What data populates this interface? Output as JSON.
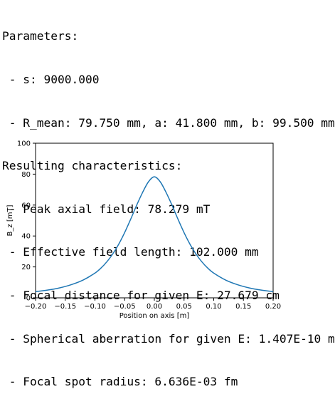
{
  "output": {
    "lines": [
      "Parameters:",
      " - s: 9000.000",
      " - R_mean: 79.750 mm, a: 41.800 mm, b: 99.500 mm",
      "Resulting characteristics:",
      " - Peak axial field: 78.279 mT",
      " - Effective field length: 102.000 mm",
      " - Focal distance for given E: 27.679 cm",
      " - Spherical aberration for given E: 1.407E-10 m",
      " - Focal spot radius: 6.636E-03 fm"
    ]
  },
  "chart_data": {
    "type": "line",
    "title": "",
    "xlabel": "Position on axis [m]",
    "ylabel": "B_z [mT]",
    "xlim": [
      -0.2,
      0.2
    ],
    "ylim": [
      0,
      100
    ],
    "xticks": [
      -0.2,
      -0.15,
      -0.1,
      -0.05,
      0.0,
      0.05,
      0.1,
      0.15,
      0.2
    ],
    "xtick_labels": [
      "−0.20",
      "−0.15",
      "−0.10",
      "−0.05",
      "0.00",
      "0.05",
      "0.10",
      "0.15",
      "0.20"
    ],
    "yticks": [
      0,
      20,
      40,
      60,
      80,
      100
    ],
    "ytick_labels": [
      "0",
      "20",
      "40",
      "60",
      "80",
      "100"
    ],
    "grid": false,
    "series": [
      {
        "color": "#1f77b4",
        "x": [
          -0.2,
          -0.18,
          -0.16,
          -0.14,
          -0.12,
          -0.1,
          -0.09,
          -0.08,
          -0.07,
          -0.06,
          -0.05,
          -0.04,
          -0.03,
          -0.02,
          -0.01,
          0.0,
          0.01,
          0.02,
          0.03,
          0.04,
          0.05,
          0.06,
          0.07,
          0.08,
          0.09,
          0.1,
          0.12,
          0.14,
          0.16,
          0.18,
          0.2
        ],
        "y": [
          4.0,
          5.0,
          6.4,
          8.5,
          11.5,
          16.0,
          19.2,
          23.3,
          28.4,
          34.7,
          42.2,
          50.7,
          59.7,
          68.0,
          75.0,
          78.3,
          75.0,
          68.0,
          59.7,
          50.7,
          42.2,
          34.7,
          28.4,
          23.3,
          19.2,
          16.0,
          11.5,
          8.5,
          6.4,
          5.0,
          4.0
        ]
      }
    ]
  }
}
